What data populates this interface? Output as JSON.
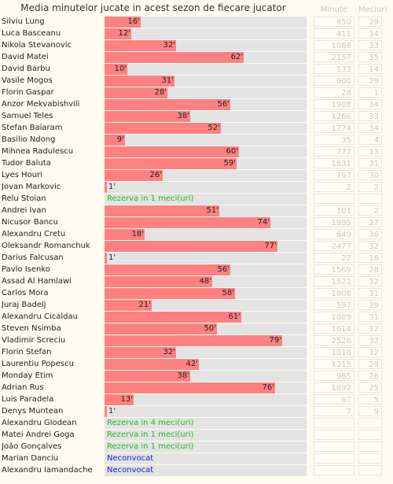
{
  "chart_data": {
    "type": "bar",
    "title": "Media minutelor jucate in acest sezon de fiecare jucator",
    "unit": "'",
    "xlim": [
      0,
      90
    ],
    "columns": {
      "minutes": "Minute",
      "matches": "Meciuri"
    },
    "players": [
      {
        "name": "Silviu Lung",
        "avg": 16,
        "minutes": 450,
        "matches": 29
      },
      {
        "name": "Luca Basceanu",
        "avg": 12,
        "minutes": 411,
        "matches": 34
      },
      {
        "name": "Nikola Stevanovic",
        "avg": 32,
        "minutes": 1068,
        "matches": 33
      },
      {
        "name": "David Matei",
        "avg": 62,
        "minutes": 2157,
        "matches": 35
      },
      {
        "name": "David Barbu",
        "avg": 10,
        "minutes": 133,
        "matches": 14
      },
      {
        "name": "Vasile Mogos",
        "avg": 31,
        "minutes": 900,
        "matches": 29
      },
      {
        "name": "Florin Gaspar",
        "avg": 28,
        "minutes": 28,
        "matches": 1
      },
      {
        "name": "Anzor Mekvabishvili",
        "avg": 56,
        "minutes": 1908,
        "matches": 34
      },
      {
        "name": "Samuel Teles",
        "avg": 38,
        "minutes": 1266,
        "matches": 33
      },
      {
        "name": "Stefan Baiaram",
        "avg": 52,
        "minutes": 1774,
        "matches": 34
      },
      {
        "name": "Basilio Ndong",
        "avg": 9,
        "minutes": 35,
        "matches": 4
      },
      {
        "name": "Mihnea Radulescu",
        "avg": 60,
        "minutes": 777,
        "matches": 13
      },
      {
        "name": "Tudor Baluta",
        "avg": 59,
        "minutes": 1831,
        "matches": 31
      },
      {
        "name": "Lyes Houri",
        "avg": 26,
        "minutes": 767,
        "matches": 30
      },
      {
        "name": "Jovan Markovic",
        "avg": 1,
        "minutes": 2,
        "matches": 2
      },
      {
        "name": "Relu Stoian",
        "note": "Rezerva in 1 meci(uri)",
        "noteType": "rez"
      },
      {
        "name": "Andrei Ivan",
        "avg": 51,
        "minutes": 101,
        "matches": 2
      },
      {
        "name": "Nicusor Bancu",
        "avg": 74,
        "minutes": 1995,
        "matches": 27
      },
      {
        "name": "Alexandru Cretu",
        "avg": 18,
        "minutes": 649,
        "matches": 36
      },
      {
        "name": "Oleksandr Romanchuk",
        "avg": 77,
        "minutes": 2477,
        "matches": 32
      },
      {
        "name": "Darius Falcusan",
        "avg": 1,
        "minutes": 22,
        "matches": 16
      },
      {
        "name": "Pavlo Isenko",
        "avg": 56,
        "minutes": 1569,
        "matches": 28
      },
      {
        "name": "Assad Al Hamlawi",
        "avg": 48,
        "minutes": 1521,
        "matches": 32
      },
      {
        "name": "Carlos Mora",
        "avg": 58,
        "minutes": 1808,
        "matches": 31
      },
      {
        "name": "Juraj Badelj",
        "avg": 21,
        "minutes": 597,
        "matches": 29
      },
      {
        "name": "Alexandru Cicaldau",
        "avg": 61,
        "minutes": 1889,
        "matches": 31
      },
      {
        "name": "Steven Nsimba",
        "avg": 50,
        "minutes": 1614,
        "matches": 32
      },
      {
        "name": "Vladimir Screciu",
        "avg": 79,
        "minutes": 2526,
        "matches": 32
      },
      {
        "name": "Florin Stefan",
        "avg": 32,
        "minutes": 1010,
        "matches": 32
      },
      {
        "name": "Laurentiu Popescu",
        "avg": 42,
        "minutes": 1215,
        "matches": 29
      },
      {
        "name": "Monday Etim",
        "avg": 38,
        "minutes": 985,
        "matches": 26
      },
      {
        "name": "Adrian Rus",
        "avg": 76,
        "minutes": 1892,
        "matches": 25
      },
      {
        "name": "Luis Paradela",
        "avg": 13,
        "minutes": 67,
        "matches": 5
      },
      {
        "name": "Denys Muntean",
        "avg": 1,
        "minutes": 7,
        "matches": 9
      },
      {
        "name": "Alexandru Glodean",
        "note": "Rezerva in 4 meci(uri)",
        "noteType": "rez"
      },
      {
        "name": "Matei Andrei Goga",
        "note": "Rezerva in 1 meci(uri)",
        "noteType": "rez"
      },
      {
        "name": "João Gonçalves",
        "note": "Rezerva in 1 meci(uri)",
        "noteType": "rez"
      },
      {
        "name": "Marian Danciu",
        "note": "Neconvocat",
        "noteType": "nec"
      },
      {
        "name": "Alexandru Iamandache",
        "note": "Neconvocat",
        "noteType": "nec"
      }
    ]
  }
}
